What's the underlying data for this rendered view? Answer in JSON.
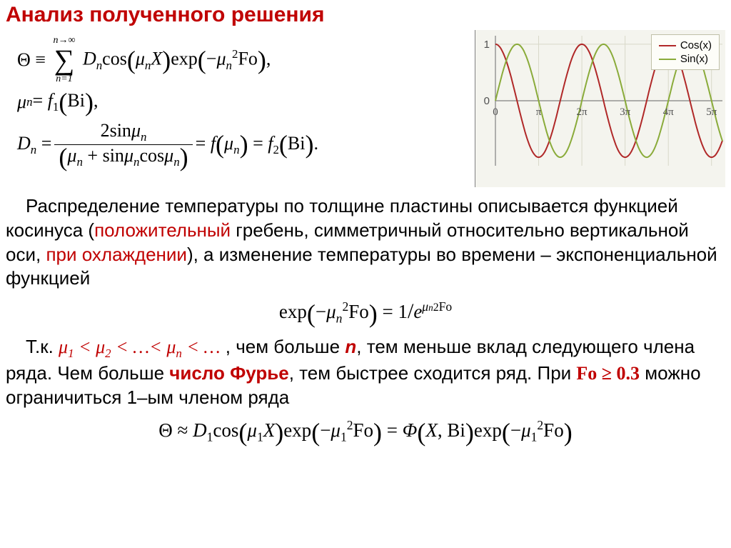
{
  "title": "Анализ полученного решения",
  "equations": {
    "theta_sum": "Θ ≡ Σ Dₙ cos(μₙX) exp(−μₙ²Fo),",
    "sum_upper": "n→∞",
    "sum_lower": "n=1",
    "mu_eq": "μₙ = f₁(Bi),",
    "dn_numerator": "2sinμₙ",
    "dn_denom": "(μₙ + sinμₙcosμₙ)",
    "dn_rhs": " = f(μₙ) = f₂(Bi).",
    "dn_lhs": "Dₙ = "
  },
  "chart": {
    "type": "line",
    "background_color": "#f4f4ee",
    "legend_bg": "#fdfdf8",
    "legend_border": "#c0c0a8",
    "series": [
      {
        "name": "Cos(x)",
        "color": "#b02828"
      },
      {
        "name": "Sin(x)",
        "color": "#8aab3a"
      }
    ],
    "axis_color": "#808080",
    "grid_color": "#d8d8c8",
    "y_ticks": [
      {
        "val": 0,
        "label": "0"
      },
      {
        "val": 1,
        "label": "1"
      }
    ],
    "x_ticks": [
      {
        "val": 0,
        "label": "0"
      },
      {
        "val": 3.14159,
        "label": "π"
      },
      {
        "val": 6.28318,
        "label": "2π"
      },
      {
        "val": 9.42477,
        "label": "3π"
      },
      {
        "val": 12.5664,
        "label": "4π"
      },
      {
        "val": 15.708,
        "label": "5π"
      }
    ],
    "xlim": [
      0,
      16.5
    ],
    "ylim": [
      -1.15,
      1.15
    ],
    "tick_fontsize": 15
  },
  "para1": {
    "t1": "Распределение температуры по толщине пластины описывается функцией косинуса (",
    "r1": "положительный",
    "t2": " гребень, симметричный относительно вертикальной оси, ",
    "r2": "при охлаждении",
    "t3": "), а изменение температуры во времени – экспоненциальной функцией"
  },
  "eq_exp": "exp(−μₙ²Fo) = 1/e^{μₙ²Fo}",
  "para2": {
    "t1": "Т.к. ",
    "r1": "μ₁ < μ₂ < …< μₙ < …",
    "t2": " , чем больше ",
    "r2": "n",
    "t3": ", тем меньше вклад следующего члена ряда. Чем больше ",
    "r3": "число Фурье",
    "t4": ", тем быстрее сходится ряд. При ",
    "r4": "Fo ≥ 0.3",
    "t5": " можно ограничиться 1–ым членом ряда"
  },
  "eq_final": "Θ ≈ D₁cos(μ₁X)exp(−μ₁²Fo) = Φ(X, Bi)exp(−μ₁²Fo)"
}
